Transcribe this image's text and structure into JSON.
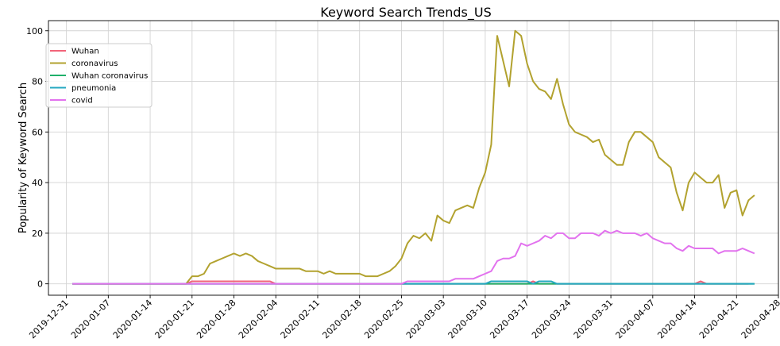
{
  "chart_data": {
    "type": "line",
    "title": "Keyword Search Trends_US",
    "xlabel": "",
    "ylabel": "Popularity of Keyword Search",
    "x_ticks": [
      "2019-12-31",
      "2020-01-07",
      "2020-01-14",
      "2020-01-21",
      "2020-01-28",
      "2020-02-04",
      "2020-02-11",
      "2020-02-18",
      "2020-02-25",
      "2020-03-03",
      "2020-03-10",
      "2020-03-17",
      "2020-03-24",
      "2020-03-31",
      "2020-04-07",
      "2020-04-14",
      "2020-04-21",
      "2020-04-28"
    ],
    "y_ticks": [
      0,
      20,
      40,
      60,
      80,
      100
    ],
    "xlim": [
      "2019-12-28",
      "2020-04-28"
    ],
    "ylim": [
      -4.5,
      104
    ],
    "grid": true,
    "legend_position": "upper-left",
    "series": [
      {
        "name": "Wuhan",
        "color": "#f2647a",
        "points": [
          [
            "2020-01-01",
            0
          ],
          [
            "2020-01-20",
            0
          ],
          [
            "2020-01-21",
            1
          ],
          [
            "2020-02-03",
            1
          ],
          [
            "2020-02-04",
            0
          ],
          [
            "2020-03-17",
            0
          ],
          [
            "2020-03-18",
            1
          ],
          [
            "2020-03-19",
            0
          ],
          [
            "2020-04-14",
            0
          ],
          [
            "2020-04-15",
            1
          ],
          [
            "2020-04-16",
            0
          ],
          [
            "2020-04-23",
            0
          ]
        ]
      },
      {
        "name": "coronavirus",
        "color": "#b2a22f",
        "points": [
          [
            "2020-01-01",
            0
          ],
          [
            "2020-01-20",
            0
          ],
          [
            "2020-01-21",
            3
          ],
          [
            "2020-01-22",
            3
          ],
          [
            "2020-01-23",
            4
          ],
          [
            "2020-01-24",
            8
          ],
          [
            "2020-01-25",
            9
          ],
          [
            "2020-01-26",
            10
          ],
          [
            "2020-01-27",
            11
          ],
          [
            "2020-01-28",
            12
          ],
          [
            "2020-01-29",
            11
          ],
          [
            "2020-01-30",
            12
          ],
          [
            "2020-01-31",
            11
          ],
          [
            "2020-02-01",
            9
          ],
          [
            "2020-02-02",
            8
          ],
          [
            "2020-02-03",
            7
          ],
          [
            "2020-02-04",
            6
          ],
          [
            "2020-02-05",
            6
          ],
          [
            "2020-02-06",
            6
          ],
          [
            "2020-02-07",
            6
          ],
          [
            "2020-02-08",
            6
          ],
          [
            "2020-02-09",
            5
          ],
          [
            "2020-02-10",
            5
          ],
          [
            "2020-02-11",
            5
          ],
          [
            "2020-02-12",
            4
          ],
          [
            "2020-02-13",
            5
          ],
          [
            "2020-02-14",
            4
          ],
          [
            "2020-02-15",
            4
          ],
          [
            "2020-02-16",
            4
          ],
          [
            "2020-02-17",
            4
          ],
          [
            "2020-02-18",
            4
          ],
          [
            "2020-02-19",
            3
          ],
          [
            "2020-02-20",
            3
          ],
          [
            "2020-02-21",
            3
          ],
          [
            "2020-02-22",
            4
          ],
          [
            "2020-02-23",
            5
          ],
          [
            "2020-02-24",
            7
          ],
          [
            "2020-02-25",
            10
          ],
          [
            "2020-02-26",
            16
          ],
          [
            "2020-02-27",
            19
          ],
          [
            "2020-02-28",
            18
          ],
          [
            "2020-02-29",
            20
          ],
          [
            "2020-03-01",
            17
          ],
          [
            "2020-03-02",
            27
          ],
          [
            "2020-03-03",
            25
          ],
          [
            "2020-03-04",
            24
          ],
          [
            "2020-03-05",
            29
          ],
          [
            "2020-03-06",
            30
          ],
          [
            "2020-03-07",
            31
          ],
          [
            "2020-03-08",
            30
          ],
          [
            "2020-03-09",
            38
          ],
          [
            "2020-03-10",
            44
          ],
          [
            "2020-03-11",
            55
          ],
          [
            "2020-03-12",
            98
          ],
          [
            "2020-03-13",
            88
          ],
          [
            "2020-03-14",
            78
          ],
          [
            "2020-03-15",
            100
          ],
          [
            "2020-03-16",
            98
          ],
          [
            "2020-03-17",
            87
          ],
          [
            "2020-03-18",
            80
          ],
          [
            "2020-03-19",
            77
          ],
          [
            "2020-03-20",
            76
          ],
          [
            "2020-03-21",
            73
          ],
          [
            "2020-03-22",
            81
          ],
          [
            "2020-03-23",
            71
          ],
          [
            "2020-03-24",
            63
          ],
          [
            "2020-03-25",
            60
          ],
          [
            "2020-03-26",
            59
          ],
          [
            "2020-03-27",
            58
          ],
          [
            "2020-03-28",
            56
          ],
          [
            "2020-03-29",
            57
          ],
          [
            "2020-03-30",
            51
          ],
          [
            "2020-03-31",
            49
          ],
          [
            "2020-04-01",
            47
          ],
          [
            "2020-04-02",
            47
          ],
          [
            "2020-04-03",
            56
          ],
          [
            "2020-04-04",
            60
          ],
          [
            "2020-04-05",
            60
          ],
          [
            "2020-04-06",
            58
          ],
          [
            "2020-04-07",
            56
          ],
          [
            "2020-04-08",
            50
          ],
          [
            "2020-04-09",
            48
          ],
          [
            "2020-04-10",
            46
          ],
          [
            "2020-04-11",
            36
          ],
          [
            "2020-04-12",
            29
          ],
          [
            "2020-04-13",
            40
          ],
          [
            "2020-04-14",
            44
          ],
          [
            "2020-04-15",
            42
          ],
          [
            "2020-04-16",
            40
          ],
          [
            "2020-04-17",
            40
          ],
          [
            "2020-04-18",
            43
          ],
          [
            "2020-04-19",
            30
          ],
          [
            "2020-04-20",
            36
          ],
          [
            "2020-04-21",
            37
          ],
          [
            "2020-04-22",
            27
          ],
          [
            "2020-04-23",
            33
          ],
          [
            "2020-04-24",
            35
          ]
        ]
      },
      {
        "name": "Wuhan coronavirus",
        "color": "#1fb06a",
        "points": [
          [
            "2020-01-01",
            0
          ],
          [
            "2020-04-24",
            0
          ]
        ]
      },
      {
        "name": "pneumonia",
        "color": "#25a8c1",
        "points": [
          [
            "2020-01-01",
            0
          ],
          [
            "2020-03-10",
            0
          ],
          [
            "2020-03-11",
            1
          ],
          [
            "2020-03-17",
            1
          ],
          [
            "2020-03-18",
            0
          ],
          [
            "2020-03-19",
            1
          ],
          [
            "2020-03-21",
            1
          ],
          [
            "2020-03-22",
            0
          ],
          [
            "2020-04-24",
            0
          ]
        ]
      },
      {
        "name": "covid",
        "color": "#e272ee",
        "points": [
          [
            "2020-01-01",
            0
          ],
          [
            "2020-02-25",
            0
          ],
          [
            "2020-02-26",
            1
          ],
          [
            "2020-03-04",
            1
          ],
          [
            "2020-03-05",
            2
          ],
          [
            "2020-03-08",
            2
          ],
          [
            "2020-03-09",
            3
          ],
          [
            "2020-03-10",
            4
          ],
          [
            "2020-03-11",
            5
          ],
          [
            "2020-03-12",
            9
          ],
          [
            "2020-03-13",
            10
          ],
          [
            "2020-03-14",
            10
          ],
          [
            "2020-03-15",
            11
          ],
          [
            "2020-03-16",
            16
          ],
          [
            "2020-03-17",
            15
          ],
          [
            "2020-03-18",
            16
          ],
          [
            "2020-03-19",
            17
          ],
          [
            "2020-03-20",
            19
          ],
          [
            "2020-03-21",
            18
          ],
          [
            "2020-03-22",
            20
          ],
          [
            "2020-03-23",
            20
          ],
          [
            "2020-03-24",
            18
          ],
          [
            "2020-03-25",
            18
          ],
          [
            "2020-03-26",
            20
          ],
          [
            "2020-03-27",
            20
          ],
          [
            "2020-03-28",
            20
          ],
          [
            "2020-03-29",
            19
          ],
          [
            "2020-03-30",
            21
          ],
          [
            "2020-03-31",
            20
          ],
          [
            "2020-04-01",
            21
          ],
          [
            "2020-04-02",
            20
          ],
          [
            "2020-04-03",
            20
          ],
          [
            "2020-04-04",
            20
          ],
          [
            "2020-04-05",
            19
          ],
          [
            "2020-04-06",
            20
          ],
          [
            "2020-04-07",
            18
          ],
          [
            "2020-04-08",
            17
          ],
          [
            "2020-04-09",
            16
          ],
          [
            "2020-04-10",
            16
          ],
          [
            "2020-04-11",
            14
          ],
          [
            "2020-04-12",
            13
          ],
          [
            "2020-04-13",
            15
          ],
          [
            "2020-04-14",
            14
          ],
          [
            "2020-04-15",
            14
          ],
          [
            "2020-04-16",
            14
          ],
          [
            "2020-04-17",
            14
          ],
          [
            "2020-04-18",
            12
          ],
          [
            "2020-04-19",
            13
          ],
          [
            "2020-04-20",
            13
          ],
          [
            "2020-04-21",
            13
          ],
          [
            "2020-04-22",
            14
          ],
          [
            "2020-04-23",
            13
          ],
          [
            "2020-04-24",
            12
          ]
        ]
      }
    ]
  }
}
